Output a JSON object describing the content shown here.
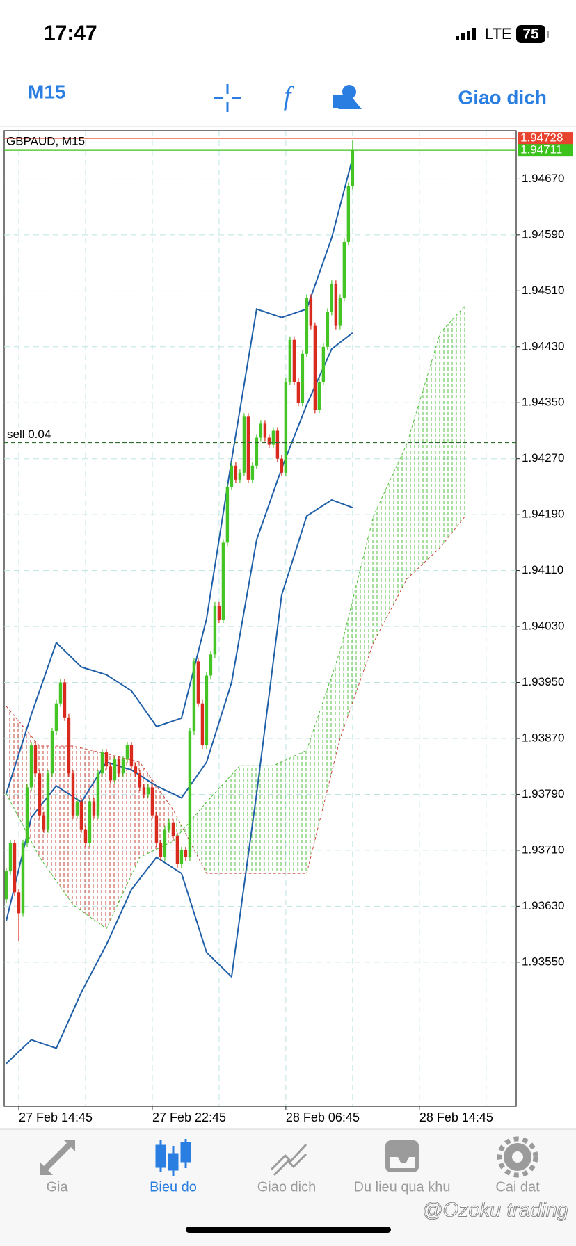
{
  "status_bar": {
    "time": "17:47",
    "network": "LTE",
    "battery": "75"
  },
  "toolbar": {
    "timeframe": "M15",
    "action": "Giao dich"
  },
  "chart_data": {
    "type": "candlestick",
    "title": "GBPAUD, M15",
    "up_color": "#44c425",
    "down_color": "#d92a1e",
    "ohlc": [
      [
        1.9364,
        1.93685,
        1.93635,
        1.9368
      ],
      [
        1.9368,
        1.93725,
        1.93675,
        1.9372
      ],
      [
        1.9372,
        1.93725,
        1.93645,
        1.9365
      ],
      [
        1.9365,
        1.93655,
        1.9358,
        1.9362
      ],
      [
        1.9362,
        1.93725,
        1.93615,
        1.9372
      ],
      [
        1.9372,
        1.93805,
        1.93715,
        1.938
      ],
      [
        1.938,
        1.93865,
        1.93795,
        1.9386
      ],
      [
        1.9386,
        1.93865,
        1.93815,
        1.9382
      ],
      [
        1.9382,
        1.93825,
        1.93755,
        1.9376
      ],
      [
        1.9376,
        1.93765,
        1.93735,
        1.9374
      ],
      [
        1.9374,
        1.93825,
        1.93735,
        1.9382
      ],
      [
        1.9382,
        1.93885,
        1.93815,
        1.9388
      ],
      [
        1.9388,
        1.93925,
        1.93875,
        1.9392
      ],
      [
        1.9392,
        1.93955,
        1.93915,
        1.9395
      ],
      [
        1.9395,
        1.93955,
        1.93895,
        1.939
      ],
      [
        1.939,
        1.93905,
        1.93815,
        1.9382
      ],
      [
        1.9382,
        1.93825,
        1.93755,
        1.9376
      ],
      [
        1.9376,
        1.93785,
        1.93755,
        1.9378
      ],
      [
        1.9378,
        1.93785,
        1.93735,
        1.9374
      ],
      [
        1.9374,
        1.93745,
        1.93715,
        1.9372
      ],
      [
        1.9372,
        1.93785,
        1.93715,
        1.9378
      ],
      [
        1.9378,
        1.93785,
        1.93755,
        1.9376
      ],
      [
        1.9376,
        1.93825,
        1.93755,
        1.9382
      ],
      [
        1.9382,
        1.93855,
        1.93815,
        1.9385
      ],
      [
        1.9385,
        1.93855,
        1.93825,
        1.9383
      ],
      [
        1.9383,
        1.93835,
        1.93805,
        1.9381
      ],
      [
        1.9381,
        1.93845,
        1.93805,
        1.9384
      ],
      [
        1.9384,
        1.93845,
        1.93815,
        1.9382
      ],
      [
        1.9382,
        1.93845,
        1.93815,
        1.9384
      ],
      [
        1.9384,
        1.93865,
        1.93835,
        1.9386
      ],
      [
        1.9386,
        1.93865,
        1.93825,
        1.9383
      ],
      [
        1.9383,
        1.93835,
        1.93815,
        1.9382
      ],
      [
        1.9382,
        1.93825,
        1.93795,
        1.938
      ],
      [
        1.938,
        1.93805,
        1.93785,
        1.9379
      ],
      [
        1.9379,
        1.93805,
        1.93785,
        1.938
      ],
      [
        1.938,
        1.93805,
        1.93755,
        1.9376
      ],
      [
        1.9376,
        1.93765,
        1.93715,
        1.9372
      ],
      [
        1.9372,
        1.93725,
        1.93695,
        1.937
      ],
      [
        1.937,
        1.93745,
        1.93695,
        1.9374
      ],
      [
        1.9374,
        1.93755,
        1.93735,
        1.9375
      ],
      [
        1.9375,
        1.93755,
        1.93725,
        1.9373
      ],
      [
        1.9373,
        1.93735,
        1.93685,
        1.9369
      ],
      [
        1.9369,
        1.93715,
        1.93685,
        1.9371
      ],
      [
        1.9371,
        1.93715,
        1.93695,
        1.937
      ],
      [
        1.937,
        1.93885,
        1.93695,
        1.9388
      ],
      [
        1.9388,
        1.93985,
        1.93875,
        1.9398
      ],
      [
        1.9398,
        1.93985,
        1.93915,
        1.9392
      ],
      [
        1.9392,
        1.93925,
        1.93855,
        1.9386
      ],
      [
        1.9386,
        1.93965,
        1.93855,
        1.9396
      ],
      [
        1.9396,
        1.93995,
        1.93955,
        1.9399
      ],
      [
        1.9399,
        1.94065,
        1.93985,
        1.9406
      ],
      [
        1.9406,
        1.94065,
        1.94035,
        1.9404
      ],
      [
        1.9404,
        1.94155,
        1.94035,
        1.9415
      ],
      [
        1.9415,
        1.94235,
        1.94145,
        1.9423
      ],
      [
        1.9423,
        1.94265,
        1.94225,
        1.9426
      ],
      [
        1.9426,
        1.94265,
        1.94235,
        1.9424
      ],
      [
        1.9424,
        1.94255,
        1.94235,
        1.9425
      ],
      [
        1.9425,
        1.94335,
        1.94245,
        1.9433
      ],
      [
        1.9433,
        1.94335,
        1.94235,
        1.9424
      ],
      [
        1.9424,
        1.94265,
        1.94235,
        1.9426
      ],
      [
        1.9426,
        1.94305,
        1.94255,
        1.943
      ],
      [
        1.943,
        1.94325,
        1.94295,
        1.9432
      ],
      [
        1.9432,
        1.94325,
        1.94295,
        1.943
      ],
      [
        1.943,
        1.94305,
        1.94285,
        1.9429
      ],
      [
        1.9429,
        1.94315,
        1.94285,
        1.9431
      ],
      [
        1.9431,
        1.94315,
        1.94265,
        1.9427
      ],
      [
        1.9427,
        1.94275,
        1.94245,
        1.9425
      ],
      [
        1.9425,
        1.94385,
        1.94245,
        1.9438
      ],
      [
        1.9438,
        1.94445,
        1.94375,
        1.9444
      ],
      [
        1.9444,
        1.94445,
        1.94375,
        1.9438
      ],
      [
        1.9438,
        1.94385,
        1.94345,
        1.9435
      ],
      [
        1.9435,
        1.94425,
        1.94345,
        1.9442
      ],
      [
        1.9442,
        1.94505,
        1.94415,
        1.945
      ],
      [
        1.945,
        1.94505,
        1.94455,
        1.9446
      ],
      [
        1.9446,
        1.94465,
        1.94335,
        1.9434
      ],
      [
        1.9434,
        1.94385,
        1.94335,
        1.9438
      ],
      [
        1.9438,
        1.94435,
        1.94375,
        1.9443
      ],
      [
        1.9443,
        1.94485,
        1.94425,
        1.9448
      ],
      [
        1.9448,
        1.94525,
        1.94475,
        1.9452
      ],
      [
        1.9452,
        1.94525,
        1.94455,
        1.9446
      ],
      [
        1.9446,
        1.94505,
        1.94455,
        1.945
      ],
      [
        1.945,
        1.94585,
        1.94495,
        1.9458
      ],
      [
        1.9458,
        1.94665,
        1.94575,
        1.9466
      ],
      [
        1.9466,
        1.94725,
        1.94655,
        1.94711
      ]
    ],
    "xlim": [
      -0.5,
      122.2
    ],
    "xticks": [
      {
        "value": 3,
        "label": "27 Feb 14:45"
      },
      {
        "value": 35,
        "label": "27 Feb 22:45"
      },
      {
        "value": 67,
        "label": "28 Feb 06:45"
      },
      {
        "value": 99,
        "label": "28 Feb 14:45"
      }
    ],
    "x_grid": [
      3,
      19,
      35,
      51,
      67,
      83,
      99,
      115
    ],
    "ylim": [
      1.93344,
      1.94739
    ],
    "yticks": [
      {
        "value": 1.9467,
        "label": "1.94670"
      },
      {
        "value": 1.9459,
        "label": "1.94590"
      },
      {
        "value": 1.9451,
        "label": "1.94510"
      },
      {
        "value": 1.9443,
        "label": "1.94430"
      },
      {
        "value": 1.9435,
        "label": "1.94350"
      },
      {
        "value": 1.9427,
        "label": "1.94270"
      },
      {
        "value": 1.9419,
        "label": "1.94190"
      },
      {
        "value": 1.9411,
        "label": "1.94110"
      },
      {
        "value": 1.9403,
        "label": "1.94030"
      },
      {
        "value": 1.9395,
        "label": "1.93950"
      },
      {
        "value": 1.9387,
        "label": "1.93870"
      },
      {
        "value": 1.9379,
        "label": "1.93790"
      },
      {
        "value": 1.9371,
        "label": "1.93710"
      },
      {
        "value": 1.9363,
        "label": "1.93630"
      },
      {
        "value": 1.9355,
        "label": "1.93550"
      }
    ],
    "grid": true,
    "bollinger": {
      "color": "#1f5fa8",
      "x": [
        0,
        6,
        12,
        18,
        24,
        30,
        36,
        42,
        48,
        54,
        60,
        66,
        72,
        78,
        83
      ],
      "upper": [
        1.93791,
        1.93904,
        1.94007,
        1.93972,
        1.93961,
        1.93938,
        1.93887,
        1.93899,
        1.94041,
        1.94268,
        1.94484,
        1.94472,
        1.94484,
        1.94586,
        1.947
      ],
      "middle": [
        1.93609,
        1.93757,
        1.93802,
        1.93779,
        1.93836,
        1.93825,
        1.93802,
        1.93785,
        1.93836,
        1.9395,
        1.94154,
        1.94256,
        1.94347,
        1.94427,
        1.9445
      ],
      "lower": [
        1.93405,
        1.93439,
        1.93427,
        1.93507,
        1.93575,
        1.93654,
        1.937,
        1.93677,
        1.93564,
        1.93529,
        1.93791,
        1.94075,
        1.94188,
        1.94211,
        1.942
      ]
    },
    "ichimoku": {
      "span_a_color": "#4fbf3a",
      "span_b_color": "#c8463a",
      "x": [
        0,
        8,
        16,
        24,
        32,
        40,
        48,
        56,
        64,
        72,
        80,
        88,
        96,
        104,
        110
      ],
      "span_a": [
        1.93791,
        1.937,
        1.93632,
        1.93598,
        1.937,
        1.93723,
        1.93779,
        1.93831,
        1.93831,
        1.93853,
        1.93995,
        1.94188,
        1.94291,
        1.9445,
        1.94489
      ],
      "span_b": [
        1.93916,
        1.93859,
        1.93859,
        1.93848,
        1.93836,
        1.93768,
        1.93677,
        1.93677,
        1.93677,
        1.93677,
        1.9387,
        1.94007,
        1.94098,
        1.94143,
        1.94188
      ]
    },
    "ask": {
      "value": 1.94728,
      "color": "#e8432e"
    },
    "bid": {
      "value": 1.94711,
      "color": "#3cc21c"
    },
    "order": {
      "label": "sell 0.04",
      "value": 1.94293,
      "color": "#2f6b2f"
    }
  },
  "tab_bar": {
    "tabs": [
      {
        "label": "Gia"
      },
      {
        "label": "Bieu do"
      },
      {
        "label": "Giao dich"
      },
      {
        "label": "Du lieu qua khu"
      },
      {
        "label": "Cai dat"
      }
    ],
    "active": 1,
    "active_color": "#2a7de1",
    "inactive_color": "#9b9b9b"
  },
  "watermark": "@Ozoku trading"
}
